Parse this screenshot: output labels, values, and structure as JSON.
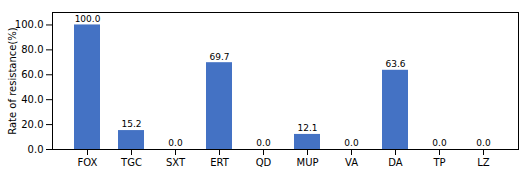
{
  "chart_data": {
    "type": "bar",
    "categories": [
      "FOX",
      "TGC",
      "SXT",
      "ERT",
      "QD",
      "MUP",
      "VA",
      "DA",
      "TP",
      "LZ"
    ],
    "values": [
      100.0,
      15.2,
      0.0,
      69.7,
      0.0,
      12.1,
      0.0,
      63.6,
      0.0,
      0.0
    ],
    "value_labels": [
      "100.0",
      "15.2",
      "0.0",
      "69.7",
      "0.0",
      "12.1",
      "0.0",
      "63.6",
      "0.0",
      "0.0"
    ],
    "data_labels": true,
    "color": "#4472C4",
    "ylabel": "Rate of resistance(%)",
    "ylim": [
      0,
      110
    ],
    "yticks": [
      {
        "value": 0,
        "label": "0.0"
      },
      {
        "value": 20,
        "label": "20.0"
      },
      {
        "value": 40,
        "label": "40.0"
      },
      {
        "value": 60,
        "label": "60.0"
      },
      {
        "value": 80,
        "label": "80.0"
      },
      {
        "value": 100,
        "label": "100.0"
      }
    ],
    "grid": false
  }
}
